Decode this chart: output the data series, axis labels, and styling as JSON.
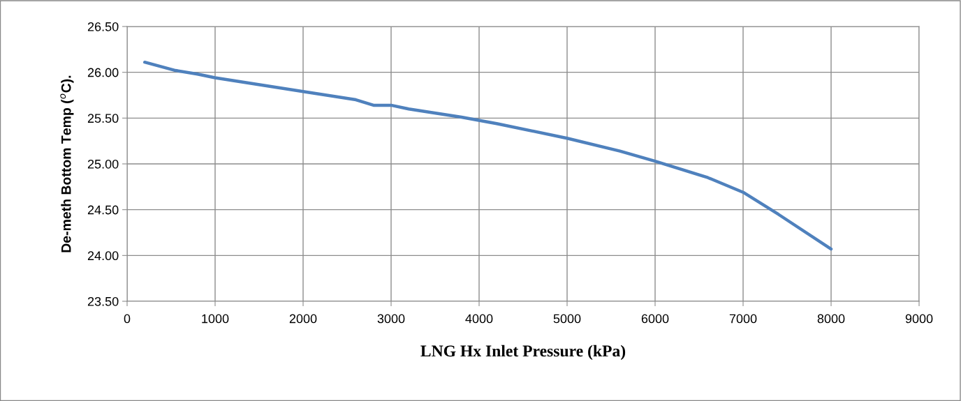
{
  "chart_data": {
    "type": "line",
    "xlabel": "LNG Hx Inlet Pressure (kPa)",
    "ylabel": "De-meth Bottom Temp ($^{o}$C).",
    "x": [
      200,
      550,
      800,
      1000,
      2000,
      2600,
      2800,
      3000,
      3200,
      3800,
      4200,
      5000,
      5600,
      6000,
      6600,
      7000,
      7400,
      8000
    ],
    "series": [
      {
        "color": "#4f81bd",
        "values": [
          26.11,
          26.02,
          25.98,
          25.94,
          25.79,
          25.7,
          25.64,
          25.64,
          25.6,
          25.51,
          25.44,
          25.28,
          25.14,
          25.03,
          24.85,
          24.69,
          24.45,
          24.07
        ]
      }
    ],
    "xlim": [
      0,
      9000
    ],
    "xticks": [
      0,
      1000,
      2000,
      3000,
      4000,
      5000,
      6000,
      7000,
      8000,
      9000
    ],
    "ylim": [
      23.5,
      26.5
    ],
    "yticks": [
      {
        "value": 23.5,
        "label": "23.50"
      },
      {
        "value": 24,
        "label": "24.00"
      },
      {
        "value": 24.5,
        "label": "24.50"
      },
      {
        "value": 25,
        "label": "25.00"
      },
      {
        "value": 25.5,
        "label": "25.50"
      },
      {
        "value": 26,
        "label": "26.00"
      },
      {
        "value": 26.5,
        "label": "26.50"
      }
    ],
    "grid": true,
    "marker": "none",
    "line_style": "solid",
    "legend": false
  }
}
